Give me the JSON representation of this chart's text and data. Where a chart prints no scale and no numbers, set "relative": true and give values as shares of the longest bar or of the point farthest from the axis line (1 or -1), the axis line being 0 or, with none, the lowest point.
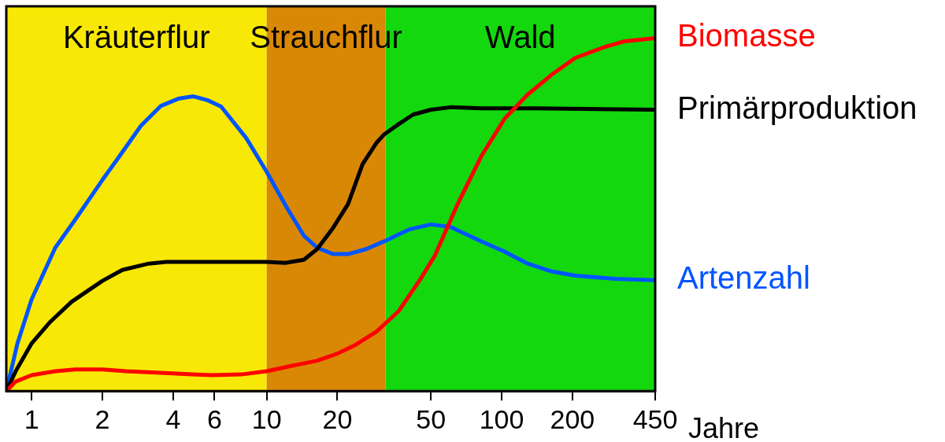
{
  "chart_data": {
    "type": "line",
    "relative": true,
    "log": "x",
    "xlabel": "Jahre",
    "xlim": [
      0.78,
      450
    ],
    "xticks": [
      1,
      2,
      4,
      6,
      10,
      20,
      50,
      100,
      200,
      450
    ],
    "tick_labels": "x",
    "legend": false,
    "marker": "none",
    "line_style": "solid",
    "bands": [
      {
        "axis": "x",
        "from": 0.78,
        "to": 10,
        "label": "Kräuterflur",
        "color": "#f8e805"
      },
      {
        "axis": "x",
        "from": 10,
        "to": 32,
        "label": "Strauchflur",
        "color": "#d98806"
      },
      {
        "axis": "x",
        "from": 32,
        "to": 450,
        "label": "Wald",
        "color": "#13d80d"
      }
    ],
    "series": [
      {
        "name": "Biomasse",
        "color": "#ff0000",
        "x": [
          0.78,
          0.855,
          1,
          1.26,
          1.53,
          2,
          2.52,
          3.4,
          4.82,
          5.88,
          7.8,
          10,
          12.5,
          16.4,
          20,
          23.9,
          29.4,
          36.4,
          45,
          52,
          65,
          82,
          103,
          129,
          163,
          206,
          275,
          334,
          450
        ],
        "values": [
          0,
          0.027,
          0.045,
          0.056,
          0.061,
          0.061,
          0.056,
          0.052,
          0.047,
          0.045,
          0.047,
          0.056,
          0.07,
          0.086,
          0.106,
          0.131,
          0.169,
          0.226,
          0.316,
          0.384,
          0.53,
          0.666,
          0.772,
          0.84,
          0.896,
          0.944,
          0.975,
          0.991,
          1
        ]
      },
      {
        "name": "Primärproduktion",
        "color": "#000000",
        "x": [
          0.78,
          0.855,
          1,
          1.2,
          1.48,
          2,
          2.43,
          3.15,
          3.74,
          4.82,
          6.9,
          10,
          12,
          14.4,
          16.4,
          19.2,
          22.2,
          25.6,
          29.4,
          31.6,
          36.4,
          41.9,
          50,
          60.5,
          82,
          140,
          226,
          450
        ],
        "values": [
          0,
          0.056,
          0.135,
          0.196,
          0.253,
          0.312,
          0.343,
          0.361,
          0.366,
          0.366,
          0.366,
          0.366,
          0.363,
          0.372,
          0.402,
          0.463,
          0.53,
          0.643,
          0.704,
          0.727,
          0.756,
          0.783,
          0.797,
          0.804,
          0.801,
          0.801,
          0.799,
          0.797
        ]
      },
      {
        "name": "Artenzahl",
        "color": "#0055ff",
        "x": [
          0.78,
          0.87,
          1,
          1.26,
          1.53,
          2,
          2.34,
          2.92,
          3.55,
          4.2,
          4.85,
          5.6,
          6.4,
          8.2,
          10,
          12.2,
          14.4,
          16.4,
          19.2,
          22.2,
          26.5,
          31.6,
          40.5,
          50,
          60.5,
          82,
          103,
          129,
          163,
          206,
          303,
          450
        ],
        "values": [
          0,
          0.135,
          0.26,
          0.406,
          0.485,
          0.598,
          0.661,
          0.752,
          0.808,
          0.828,
          0.835,
          0.824,
          0.806,
          0.716,
          0.621,
          0.519,
          0.44,
          0.406,
          0.388,
          0.388,
          0.402,
          0.424,
          0.458,
          0.472,
          0.465,
          0.424,
          0.395,
          0.361,
          0.339,
          0.327,
          0.318,
          0.314
        ]
      }
    ]
  }
}
